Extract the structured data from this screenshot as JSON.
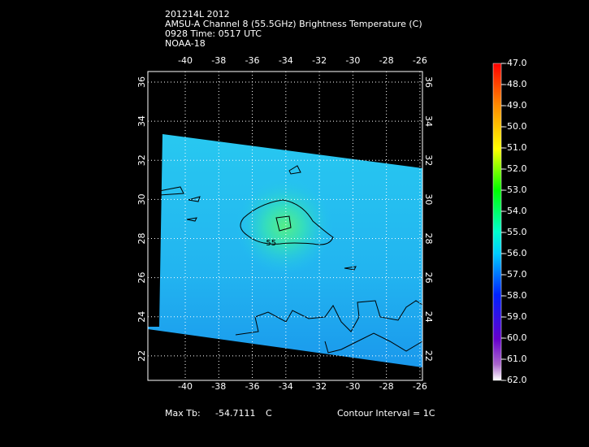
{
  "header": {
    "lines": [
      "201214L 2012",
      "AMSU-A Channel 8 (55.5GHz) Brightness Temperature (C)",
      "0928 Time: 0517 UTC",
      "NOAA-18"
    ]
  },
  "map": {
    "xlim": [
      -42.23,
      -25.85
    ],
    "ylim": [
      20.75,
      36.54
    ],
    "xticks": [
      -40,
      -38,
      -36,
      -34,
      -32,
      -30,
      -28,
      -26
    ],
    "yticks": [
      22,
      24,
      26,
      28,
      30,
      32,
      34,
      36
    ],
    "contour_label": "-55"
  },
  "colorbar": {
    "ticks": [
      {
        "value": -47,
        "label": "-47.0"
      },
      {
        "value": -48,
        "label": "-48.0"
      },
      {
        "value": -49,
        "label": "-49.0"
      },
      {
        "value": -50,
        "label": "-50.0"
      },
      {
        "value": -51,
        "label": "-51.0"
      },
      {
        "value": -52,
        "label": "-52.0"
      },
      {
        "value": -53,
        "label": "-53.0"
      },
      {
        "value": -54,
        "label": "-54.0"
      },
      {
        "value": -55,
        "label": "-55.0"
      },
      {
        "value": -56,
        "label": "-56.0"
      },
      {
        "value": -57,
        "label": "-57.0"
      },
      {
        "value": -58,
        "label": "-58.0"
      },
      {
        "value": -59,
        "label": "-59.0"
      },
      {
        "value": -60,
        "label": "-60.0"
      },
      {
        "value": -61,
        "label": "-61.0"
      },
      {
        "value": -62,
        "label": "-62.0"
      }
    ]
  },
  "footer": {
    "max_label": "Max Tb:",
    "max_value": "-54.7111",
    "unit": "C",
    "contour_interval": "Contour Interval = 1C"
  }
}
